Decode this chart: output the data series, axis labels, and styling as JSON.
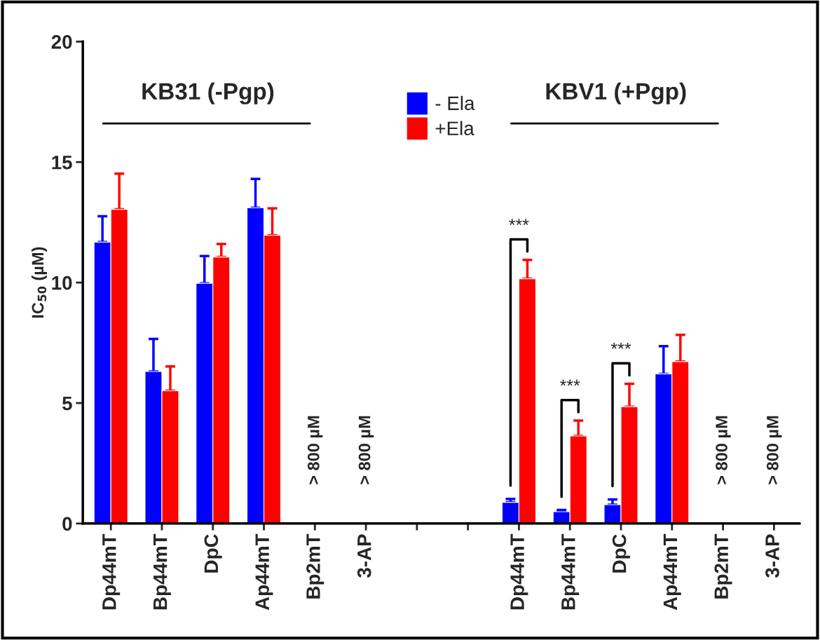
{
  "chart_data": {
    "type": "bar",
    "categories": [
      "Dp44mT",
      "Bp44mT",
      "DpC",
      "Ap44mT",
      "Bp2mT",
      "3-AP",
      null,
      null,
      "Dp44mT",
      "Bp44mT",
      "DpC",
      "Ap44mT",
      "Bp2mT",
      "3-AP"
    ],
    "ylabel": "IC$_{50}$ (µM)",
    "series": [
      {
        "name": "- Ela",
        "color": "#0000ff",
        "values": [
          11.68,
          6.31,
          9.97,
          13.1,
          null,
          null,
          null,
          null,
          0.88,
          0.49,
          0.78,
          6.21,
          null,
          null
        ],
        "errors": [
          [
            11.68,
            12.75
          ],
          [
            6.31,
            7.66
          ],
          [
            9.97,
            11.1
          ],
          [
            13.1,
            14.3
          ],
          null,
          null,
          null,
          null,
          [
            0.88,
            1.02
          ],
          [
            0.49,
            0.56
          ],
          [
            0.78,
            1.0
          ],
          [
            6.21,
            7.36
          ],
          null,
          null
        ]
      },
      {
        "name": "+Ela",
        "color": "#ff0000",
        "values": [
          13.04,
          5.51,
          11.06,
          11.96,
          null,
          null,
          null,
          null,
          10.16,
          3.63,
          4.85,
          6.72,
          null,
          null
        ],
        "errors": [
          [
            13.04,
            14.52
          ],
          [
            5.51,
            6.52
          ],
          [
            11.06,
            11.6
          ],
          [
            11.96,
            13.08
          ],
          null,
          null,
          null,
          null,
          [
            10.16,
            10.94
          ],
          [
            3.63,
            4.27
          ],
          [
            4.85,
            5.8
          ],
          [
            6.72,
            7.83
          ],
          null,
          null
        ]
      }
    ],
    "ylim": [
      0,
      20
    ],
    "yticks": [
      0,
      5,
      10,
      15,
      20
    ],
    "grid": false,
    "legend": "top",
    "annotations": [
      "KB31 (-Pgp)",
      "KBV1 (+Pgp)",
      "> 800 µM",
      "> 800 µM",
      "> 800 µM",
      "> 800 µM",
      "***",
      "***",
      "***"
    ]
  }
}
